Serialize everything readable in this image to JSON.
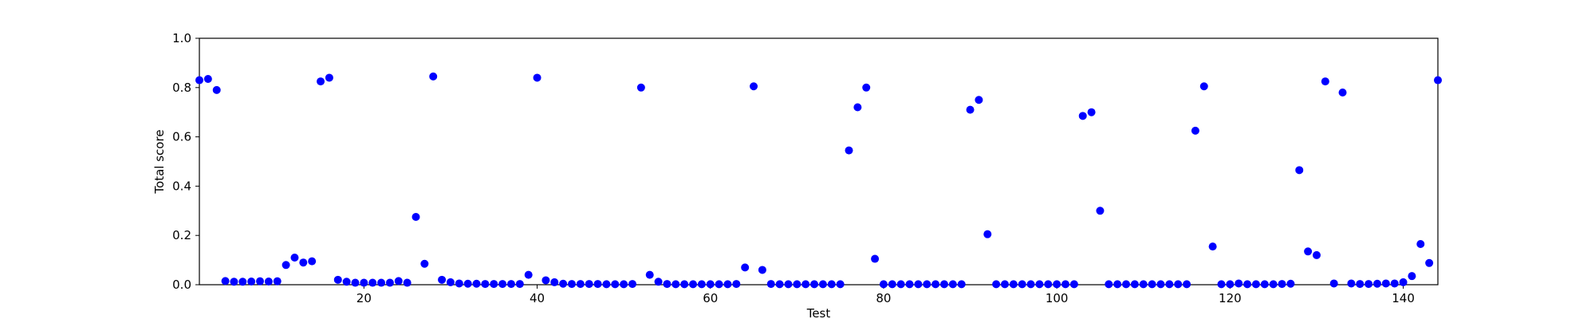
{
  "chart_data": {
    "type": "scatter",
    "title": "",
    "xlabel": "Test",
    "ylabel": "Total score",
    "xlim": [
      1,
      144
    ],
    "ylim": [
      0.0,
      1.0
    ],
    "xticks": [
      20,
      40,
      60,
      80,
      100,
      120,
      140
    ],
    "xtick_labels": [
      "20",
      "40",
      "60",
      "80",
      "100",
      "120",
      "140"
    ],
    "yticks": [
      0.0,
      0.2,
      0.4,
      0.6,
      0.8,
      1.0
    ],
    "ytick_labels": [
      "0.0",
      "0.2",
      "0.4",
      "0.6",
      "0.8",
      "1.0"
    ],
    "grid": false,
    "marker_color": "#0000ff",
    "series": [
      {
        "x": [
          1,
          2,
          3,
          4,
          5,
          6,
          7,
          8,
          9,
          10,
          11,
          12,
          13,
          14,
          15,
          16,
          17,
          18,
          19,
          20,
          21,
          22,
          23,
          24,
          25,
          26,
          27,
          28,
          29,
          30,
          31,
          32,
          33,
          34,
          35,
          36,
          37,
          38,
          39,
          40,
          41,
          42,
          43,
          44,
          45,
          46,
          47,
          48,
          49,
          50,
          51,
          52,
          53,
          54,
          55,
          56,
          57,
          58,
          59,
          60,
          61,
          62,
          63,
          64,
          65,
          66,
          67,
          68,
          69,
          70,
          71,
          72,
          73,
          74,
          75,
          76,
          77,
          78,
          79,
          80,
          81,
          82,
          83,
          84,
          85,
          86,
          87,
          88,
          89,
          90,
          91,
          92,
          93,
          94,
          95,
          96,
          97,
          98,
          99,
          100,
          101,
          102,
          103,
          104,
          105,
          106,
          107,
          108,
          109,
          110,
          111,
          112,
          113,
          114,
          115,
          116,
          117,
          118,
          119,
          120,
          121,
          122,
          123,
          124,
          125,
          126,
          127,
          128,
          129,
          130,
          131,
          132,
          133,
          134,
          135,
          136,
          137,
          138,
          139,
          140,
          141,
          142,
          143,
          144
        ],
        "y": [
          0.83,
          0.835,
          0.79,
          0.015,
          0.012,
          0.012,
          0.013,
          0.014,
          0.013,
          0.014,
          0.08,
          0.11,
          0.09,
          0.095,
          0.825,
          0.84,
          0.02,
          0.012,
          0.008,
          0.008,
          0.008,
          0.008,
          0.008,
          0.015,
          0.008,
          0.275,
          0.085,
          0.845,
          0.02,
          0.01,
          0.005,
          0.004,
          0.004,
          0.003,
          0.003,
          0.003,
          0.003,
          0.003,
          0.04,
          0.84,
          0.018,
          0.01,
          0.004,
          0.003,
          0.003,
          0.003,
          0.003,
          0.002,
          0.002,
          0.002,
          0.003,
          0.8,
          0.04,
          0.012,
          0.003,
          0.002,
          0.002,
          0.002,
          0.002,
          0.002,
          0.002,
          0.002,
          0.003,
          0.07,
          0.805,
          0.06,
          0.003,
          0.002,
          0.002,
          0.002,
          0.002,
          0.002,
          0.002,
          0.002,
          0.002,
          0.545,
          0.72,
          0.8,
          0.105,
          0.002,
          0.002,
          0.002,
          0.002,
          0.002,
          0.002,
          0.002,
          0.002,
          0.002,
          0.002,
          0.71,
          0.75,
          0.205,
          0.002,
          0.002,
          0.002,
          0.002,
          0.002,
          0.002,
          0.002,
          0.002,
          0.002,
          0.002,
          0.685,
          0.7,
          0.3,
          0.002,
          0.002,
          0.002,
          0.002,
          0.002,
          0.002,
          0.002,
          0.002,
          0.002,
          0.002,
          0.625,
          0.805,
          0.155,
          0.002,
          0.002,
          0.005,
          0.002,
          0.002,
          0.002,
          0.002,
          0.003,
          0.004,
          0.465,
          0.135,
          0.12,
          0.825,
          0.005,
          0.78,
          0.005,
          0.003,
          0.003,
          0.004,
          0.005,
          0.005,
          0.01,
          0.035,
          0.165,
          0.088,
          0.83
        ]
      }
    ]
  }
}
